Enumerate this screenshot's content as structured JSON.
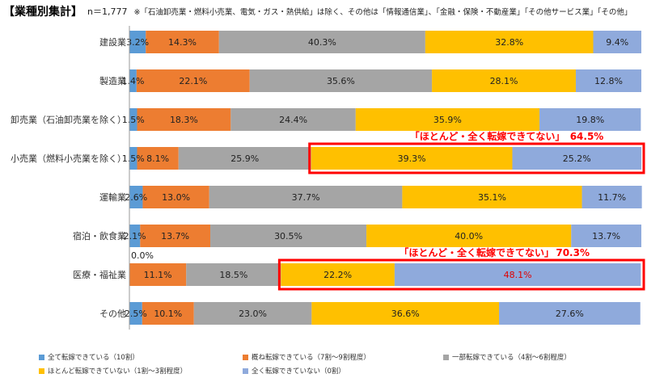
{
  "header": {
    "title": "【業種別集計】",
    "sample_size": "n＝1,777",
    "note": "※「石油卸売業・燃料小売業、電気・ガス・熱供給」は除く、その他は「情報通信業」、「金融・保険・不動産業」「その他サービス業」「その他」"
  },
  "chart_data": {
    "type": "bar",
    "orientation": "horizontal",
    "stacked": "percent",
    "categories": [
      "建設業",
      "製造業",
      "卸売業（石油卸売業を除く）",
      "小売業（燃料小売業を除く）",
      "運輸業",
      "宿泊・飲食業",
      "医療・福祉業",
      "その他"
    ],
    "series": [
      {
        "name": "全て転嫁できている（10割）",
        "color": "#5B9BD5",
        "values": [
          3.2,
          1.4,
          1.5,
          1.5,
          2.6,
          2.1,
          0.0,
          2.5
        ]
      },
      {
        "name": "概ね転嫁できている（7割〜9割程度）",
        "color": "#ED7D31",
        "values": [
          14.3,
          22.1,
          18.3,
          8.1,
          13.0,
          13.7,
          11.1,
          10.1
        ]
      },
      {
        "name": "一部転嫁できている（4割〜6割程度）",
        "color": "#A5A5A5",
        "values": [
          40.3,
          35.6,
          24.4,
          25.9,
          37.7,
          30.5,
          18.5,
          23.0
        ]
      },
      {
        "name": "ほとんど転嫁できていない（1割〜3割程度）",
        "color": "#FFC000",
        "values": [
          32.8,
          28.1,
          35.9,
          39.3,
          35.1,
          40.0,
          22.2,
          36.6
        ]
      },
      {
        "name": "全く転嫁できていない（0割）",
        "color": "#8FAADC",
        "values": [
          9.4,
          12.8,
          19.8,
          25.2,
          11.7,
          13.7,
          48.1,
          27.6
        ]
      }
    ],
    "labels": [
      [
        "3.2%",
        "14.3%",
        "40.3%",
        "32.8%",
        "9.4%"
      ],
      [
        "1.4%",
        "22.1%",
        "35.6%",
        "28.1%",
        "12.8%"
      ],
      [
        "1.5%",
        "18.3%",
        "24.4%",
        "35.9%",
        "19.8%"
      ],
      [
        "1.5%",
        "8.1%",
        "25.9%",
        "39.3%",
        "25.2%"
      ],
      [
        "2.6%",
        "13.0%",
        "37.7%",
        "35.1%",
        "11.7%"
      ],
      [
        "2.1%",
        "13.7%",
        "30.5%",
        "40.0%",
        "13.7%"
      ],
      [
        "0.0%",
        "11.1%",
        "18.5%",
        "22.2%",
        "48.1%"
      ],
      [
        "2.5%",
        "10.1%",
        "23.0%",
        "36.6%",
        "27.6%"
      ]
    ],
    "highlight_color": "#FF0000",
    "annotations": [
      {
        "category_index": 3,
        "text": "「ほとんど・全く転嫁できてない」",
        "value": "64.5%"
      },
      {
        "category_index": 6,
        "text": "「ほとんど・全く転嫁できてない」",
        "value": "70.3%"
      }
    ],
    "xlim": [
      0,
      100
    ],
    "legend_position": "bottom"
  }
}
